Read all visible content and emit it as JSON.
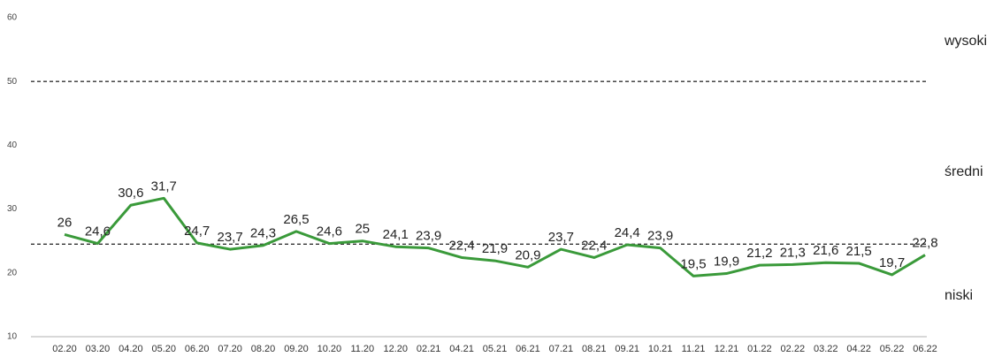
{
  "chart_data": {
    "type": "line",
    "categories": [
      "02.20",
      "03.20",
      "04.20",
      "05.20",
      "06.20",
      "07.20",
      "08.20",
      "09.20",
      "10.20",
      "11.20",
      "12.20",
      "02.21",
      "04.21",
      "05.21",
      "06.21",
      "07.21",
      "08.21",
      "09.21",
      "10.21",
      "11.21",
      "12.21",
      "01.22",
      "02.22",
      "03.22",
      "04.22",
      "05.22",
      "06.22"
    ],
    "series": [
      {
        "color": "#3a9a3a",
        "values": [
          26,
          24.6,
          30.6,
          31.7,
          24.7,
          23.7,
          24.3,
          26.5,
          24.6,
          25,
          24.1,
          23.9,
          22.4,
          21.9,
          20.9,
          23.7,
          22.4,
          24.4,
          23.9,
          19.5,
          19.9,
          21.2,
          21.3,
          21.6,
          21.5,
          19.7,
          22.8
        ],
        "value_labels": [
          "26",
          "24,6",
          "30,6",
          "31,7",
          "24,7",
          "23,7",
          "24,3",
          "26,5",
          "24,6",
          "25",
          "24,1",
          "23,9",
          "22,4",
          "21,9",
          "20,9",
          "23,7",
          "22,4",
          "24,4",
          "23,9",
          "19,5",
          "19,9",
          "21,2",
          "21,3",
          "21,6",
          "21,5",
          "19,7",
          "22,8"
        ]
      }
    ],
    "ylim": [
      10,
      60
    ],
    "yticks": [
      10,
      20,
      30,
      40,
      50,
      60
    ],
    "reference_lines": [
      50,
      24.5
    ],
    "zone_labels": [
      "wysoki",
      "średni",
      "niski"
    ]
  }
}
